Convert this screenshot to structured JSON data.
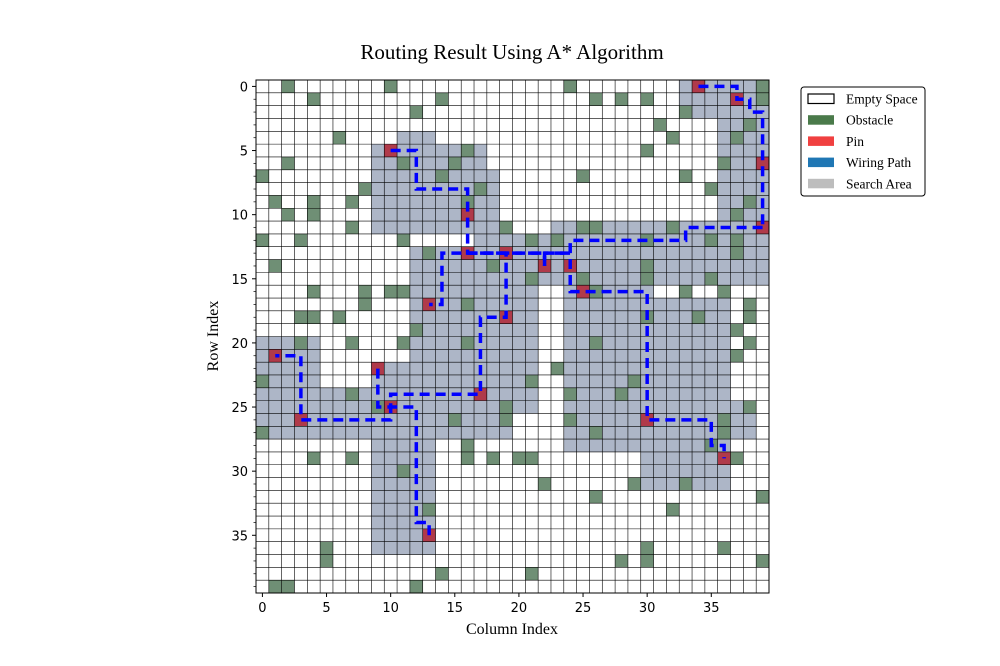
{
  "chart_data": {
    "type": "heatmap",
    "title": "Routing Result Using A* Algorithm",
    "xlabel": "Column Index",
    "ylabel": "Row Index",
    "grid": true,
    "grid_size": {
      "rows": 40,
      "cols": 40
    },
    "x_ticks": [
      0,
      5,
      10,
      15,
      20,
      25,
      30,
      35
    ],
    "y_ticks": [
      0,
      5,
      10,
      15,
      20,
      25,
      30,
      35
    ],
    "xlim": [
      -0.5,
      39.5
    ],
    "ylim": [
      39.5,
      -0.5
    ],
    "legend_position": "upper-right-outside",
    "legend": [
      {
        "key": "empty",
        "label": "Empty Space",
        "color": "#ffffff"
      },
      {
        "key": "obstacle",
        "label": "Obstacle",
        "color": "#4a7a4a"
      },
      {
        "key": "pin",
        "label": "Pin",
        "color": "#f04040"
      },
      {
        "key": "path",
        "label": "Wiring Path",
        "color": "#1f77b4"
      },
      {
        "key": "search",
        "label": "Search Area",
        "color": "#bdbdbd"
      }
    ],
    "obstacles": [
      [
        0,
        2
      ],
      [
        0,
        10
      ],
      [
        0,
        24
      ],
      [
        0,
        39
      ],
      [
        1,
        4
      ],
      [
        1,
        14
      ],
      [
        1,
        26
      ],
      [
        1,
        28
      ],
      [
        1,
        30
      ],
      [
        1,
        39
      ],
      [
        2,
        12
      ],
      [
        2,
        33
      ],
      [
        3,
        31
      ],
      [
        3,
        38
      ],
      [
        4,
        6
      ],
      [
        4,
        32
      ],
      [
        4,
        37
      ],
      [
        5,
        30
      ],
      [
        5,
        16
      ],
      [
        6,
        2
      ],
      [
        6,
        11
      ],
      [
        6,
        15
      ],
      [
        6,
        36
      ],
      [
        7,
        0
      ],
      [
        7,
        14
      ],
      [
        7,
        25
      ],
      [
        7,
        33
      ],
      [
        8,
        8
      ],
      [
        8,
        17
      ],
      [
        8,
        35
      ],
      [
        9,
        1
      ],
      [
        9,
        4
      ],
      [
        9,
        7
      ],
      [
        9,
        16
      ],
      [
        9,
        38
      ],
      [
        10,
        2
      ],
      [
        10,
        4
      ],
      [
        10,
        37
      ],
      [
        11,
        7
      ],
      [
        11,
        19
      ],
      [
        11,
        25
      ],
      [
        11,
        26
      ],
      [
        11,
        32
      ],
      [
        12,
        0
      ],
      [
        12,
        3
      ],
      [
        12,
        11
      ],
      [
        12,
        21
      ],
      [
        12,
        23
      ],
      [
        12,
        30
      ],
      [
        12,
        35
      ],
      [
        12,
        37
      ],
      [
        13,
        13
      ],
      [
        13,
        16
      ],
      [
        13,
        37
      ],
      [
        14,
        1
      ],
      [
        14,
        18
      ],
      [
        14,
        30
      ],
      [
        15,
        21
      ],
      [
        15,
        25
      ],
      [
        15,
        30
      ],
      [
        15,
        35
      ],
      [
        16,
        4
      ],
      [
        16,
        8
      ],
      [
        16,
        10
      ],
      [
        16,
        11
      ],
      [
        16,
        26
      ],
      [
        16,
        33
      ],
      [
        16,
        36
      ],
      [
        17,
        8
      ],
      [
        17,
        16
      ],
      [
        17,
        38
      ],
      [
        18,
        3
      ],
      [
        18,
        4
      ],
      [
        18,
        6
      ],
      [
        18,
        30
      ],
      [
        18,
        34
      ],
      [
        18,
        38
      ],
      [
        19,
        12
      ],
      [
        19,
        37
      ],
      [
        20,
        3
      ],
      [
        20,
        7
      ],
      [
        20,
        11
      ],
      [
        20,
        16
      ],
      [
        20,
        26
      ],
      [
        20,
        38
      ],
      [
        21,
        37
      ],
      [
        22,
        23
      ],
      [
        23,
        0
      ],
      [
        23,
        21
      ],
      [
        23,
        29
      ],
      [
        24,
        7
      ],
      [
        24,
        24
      ],
      [
        24,
        28
      ],
      [
        25,
        9
      ],
      [
        25,
        19
      ],
      [
        25,
        38
      ],
      [
        26,
        15
      ],
      [
        26,
        19
      ],
      [
        26,
        24
      ],
      [
        26,
        36
      ],
      [
        27,
        0
      ],
      [
        27,
        26
      ],
      [
        27,
        36
      ],
      [
        28,
        16
      ],
      [
        28,
        35
      ],
      [
        29,
        4
      ],
      [
        29,
        7
      ],
      [
        29,
        16
      ],
      [
        29,
        18
      ],
      [
        29,
        20
      ],
      [
        29,
        21
      ],
      [
        29,
        37
      ],
      [
        30,
        11
      ],
      [
        31,
        22
      ],
      [
        31,
        29
      ],
      [
        31,
        33
      ],
      [
        32,
        26
      ],
      [
        32,
        39
      ],
      [
        33,
        13
      ],
      [
        33,
        32
      ],
      [
        36,
        5
      ],
      [
        36,
        30
      ],
      [
        36,
        36
      ],
      [
        37,
        5
      ],
      [
        37,
        28
      ],
      [
        37,
        30
      ],
      [
        37,
        39
      ],
      [
        38,
        14
      ],
      [
        38,
        21
      ],
      [
        39,
        1
      ],
      [
        39,
        2
      ],
      [
        39,
        12
      ]
    ],
    "pins": [
      [
        0,
        34
      ],
      [
        1,
        37
      ],
      [
        5,
        10
      ],
      [
        6,
        39
      ],
      [
        10,
        16
      ],
      [
        11,
        39
      ],
      [
        13,
        16
      ],
      [
        13,
        19
      ],
      [
        14,
        22
      ],
      [
        14,
        24
      ],
      [
        16,
        25
      ],
      [
        17,
        13
      ],
      [
        18,
        19
      ],
      [
        21,
        1
      ],
      [
        22,
        9
      ],
      [
        24,
        17
      ],
      [
        25,
        10
      ],
      [
        26,
        3
      ],
      [
        26,
        30
      ],
      [
        29,
        36
      ],
      [
        35,
        13
      ]
    ],
    "search_rects": [
      [
        0,
        33,
        2,
        39
      ],
      [
        2,
        36,
        11,
        39
      ],
      [
        4,
        11,
        11,
        13
      ],
      [
        5,
        9,
        11,
        17
      ],
      [
        7,
        9,
        11,
        18
      ],
      [
        11,
        23,
        15,
        39
      ],
      [
        12,
        17,
        15,
        24
      ],
      [
        13,
        12,
        22,
        21
      ],
      [
        22,
        9,
        25,
        21
      ],
      [
        24,
        0,
        27,
        14
      ],
      [
        20,
        0,
        24,
        4
      ],
      [
        22,
        12,
        27,
        19
      ],
      [
        27,
        9,
        36,
        13
      ],
      [
        11,
        24,
        28,
        30
      ],
      [
        17,
        30,
        31,
        36
      ],
      [
        25,
        30,
        27,
        38
      ],
      [
        15,
        26,
        27,
        30
      ]
    ],
    "paths": [
      [
        [
          0,
          34
        ],
        [
          0,
          37
        ],
        [
          1,
          37
        ],
        [
          1,
          38
        ],
        [
          2,
          38
        ],
        [
          2,
          39
        ],
        [
          11,
          39
        ]
      ],
      [
        [
          5,
          10
        ],
        [
          5,
          12
        ],
        [
          8,
          12
        ],
        [
          8,
          16
        ],
        [
          13,
          16
        ],
        [
          13,
          24
        ],
        [
          14,
          24
        ],
        [
          16,
          24
        ],
        [
          16,
          30
        ],
        [
          26,
          30
        ],
        [
          26,
          35
        ],
        [
          28,
          35
        ],
        [
          28,
          36
        ],
        [
          29,
          36
        ]
      ],
      [
        [
          11,
          39
        ],
        [
          11,
          33
        ],
        [
          12,
          33
        ],
        [
          12,
          24
        ],
        [
          13,
          24
        ],
        [
          13,
          22
        ],
        [
          14,
          22
        ]
      ],
      [
        [
          13,
          16
        ],
        [
          13,
          19
        ],
        [
          18,
          19
        ],
        [
          18,
          17
        ],
        [
          24,
          17
        ],
        [
          24,
          10
        ],
        [
          25,
          10
        ],
        [
          26,
          10
        ],
        [
          26,
          3
        ],
        [
          21,
          3
        ],
        [
          21,
          1
        ]
      ],
      [
        [
          14,
          22
        ],
        [
          13,
          22
        ],
        [
          13,
          14
        ],
        [
          14,
          14
        ],
        [
          17,
          14
        ],
        [
          17,
          13
        ]
      ],
      [
        [
          22,
          9
        ],
        [
          25,
          9
        ],
        [
          25,
          10
        ],
        [
          25,
          12
        ],
        [
          34,
          12
        ],
        [
          34,
          13
        ],
        [
          35,
          13
        ]
      ]
    ]
  }
}
